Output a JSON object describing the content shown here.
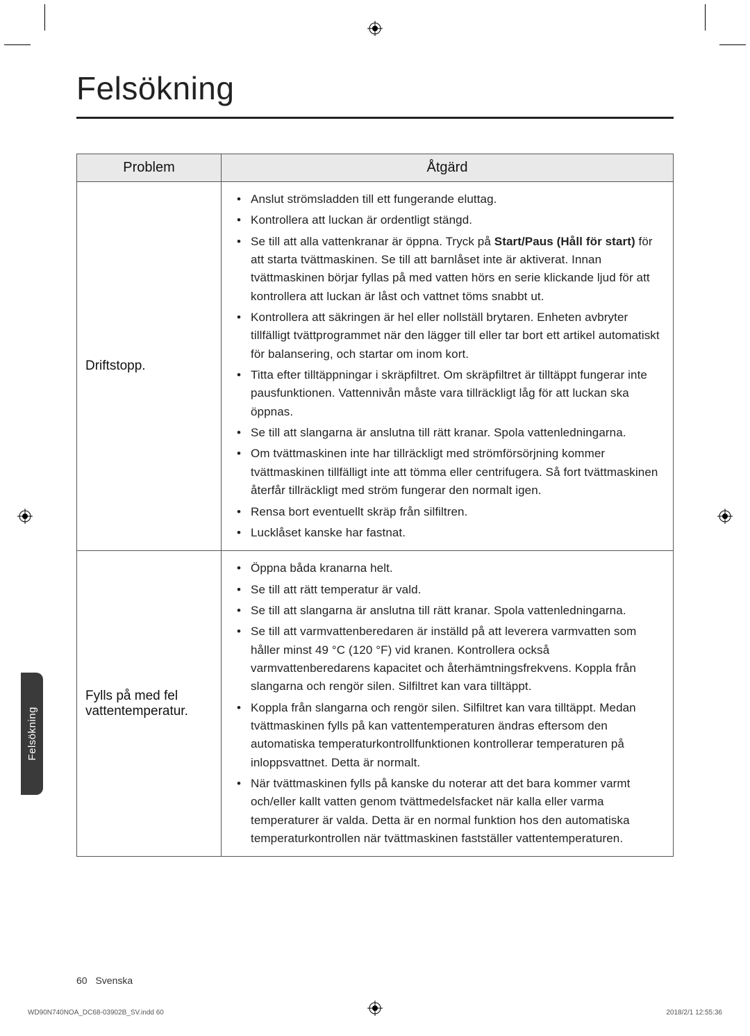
{
  "page": {
    "title": "Felsökning",
    "side_tab": "Felsökning",
    "footer_page": "60",
    "footer_lang": "Svenska",
    "slug_left": "WD90N740NOA_DC68-03902B_SV.indd   60",
    "slug_right": "2018/2/1   12:55:36"
  },
  "table": {
    "head_problem": "Problem",
    "head_action": "Åtgärd",
    "rows": [
      {
        "problem": "Driftstopp.",
        "actions": [
          "Anslut strömsladden till ett fungerande eluttag.",
          "Kontrollera att luckan är ordentligt stängd.",
          "Se till att alla vattenkranar är öppna. Tryck på <span class=\"bold\">Start/Paus (Håll för start)</span> för att starta tvättmaskinen. Se till att barnlåset inte är aktiverat. Innan tvättmaskinen börjar fyllas på med vatten hörs en serie klickande ljud för att kontrollera att luckan är låst och vattnet töms snabbt ut.",
          "Kontrollera att säkringen är hel eller nollställ brytaren. Enheten avbryter tillfälligt tvättprogrammet när den lägger till eller tar bort ett artikel automatiskt för balansering, och startar om inom kort.",
          "Titta efter tilltäppningar i skräpfiltret. Om skräpfiltret är tilltäppt fungerar inte pausfunktionen. Vattennivån måste vara tillräckligt låg för att luckan ska öppnas.",
          "Se till att slangarna är anslutna till rätt kranar. Spola vattenledningarna.",
          "Om tvättmaskinen inte har tillräckligt med strömförsörjning kommer tvättmaskinen tillfälligt inte att tömma eller centrifugera. Så fort tvättmaskinen återfår tillräckligt med ström fungerar den normalt igen.",
          "Rensa bort eventuellt skräp från silfiltren.",
          "Lucklåset kanske har fastnat."
        ]
      },
      {
        "problem": "Fylls på med fel vattentemperatur.",
        "actions": [
          "Öppna båda kranarna helt.",
          "Se till att rätt temperatur är vald.",
          "Se till att slangarna är anslutna till rätt kranar. Spola vattenledningarna.",
          "Se till att varmvattenberedaren är inställd på att leverera varmvatten som håller minst 49 °C (120 °F) vid kranen. Kontrollera också varmvattenberedarens kapacitet och återhämtningsfrekvens. Koppla från slangarna och rengör silen. Silfiltret kan vara tilltäppt.",
          "Koppla från slangarna och rengör silen. Silfiltret kan vara tilltäppt. Medan tvättmaskinen fylls på kan vattentemperaturen ändras eftersom den automatiska temperaturkontrollfunktionen kontrollerar temperaturen på inloppsvattnet. Detta är normalt.",
          "När tvättmaskinen fylls på kanske du noterar att det bara kommer varmt och/eller kallt vatten genom tvättmedelsfacket när kalla eller varma temperaturer är valda. Detta är en normal funktion hos den automatiska temperaturkontrollen när tvättmaskinen fastställer vattentemperaturen."
        ]
      }
    ]
  }
}
